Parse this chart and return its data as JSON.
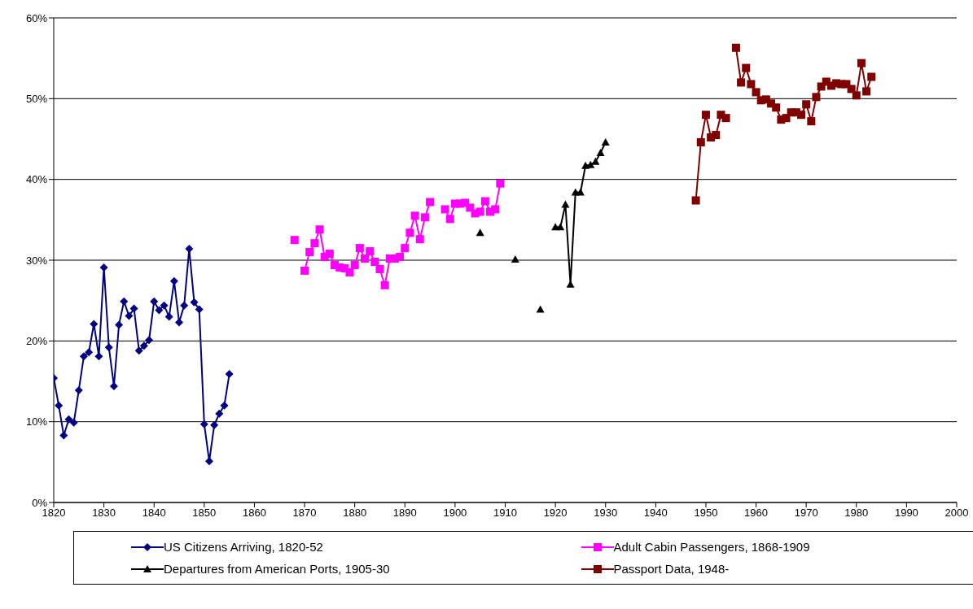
{
  "chart_data": {
    "type": "line",
    "xlim": [
      1820,
      2000
    ],
    "xticks": [
      1820,
      1830,
      1840,
      1850,
      1860,
      1870,
      1880,
      1890,
      1900,
      1910,
      1920,
      1930,
      1940,
      1950,
      1960,
      1970,
      1980,
      1990,
      2000
    ],
    "ylim": [
      0,
      60
    ],
    "yticks": [
      {
        "value": 0,
        "label": "0%"
      },
      {
        "value": 10,
        "label": "10%"
      },
      {
        "value": 20,
        "label": "20%"
      },
      {
        "value": 30,
        "label": "30%"
      },
      {
        "value": 40,
        "label": "40%"
      },
      {
        "value": 50,
        "label": "50%"
      },
      {
        "value": 60,
        "label": "60%"
      }
    ],
    "grid": "y",
    "legend": "bottom",
    "series": [
      {
        "name": "US Citizens Arriving, 1820-52",
        "color": "#000080",
        "marker": "diamond",
        "x": [
          1820,
          1821,
          1822,
          1823,
          1824,
          1825,
          1826,
          1827,
          1828,
          1829,
          1830,
          1831,
          1832,
          1833,
          1834,
          1835,
          1836,
          1837,
          1838,
          1839,
          1840,
          1841,
          1842,
          1843,
          1844,
          1845,
          1846,
          1847,
          1848,
          1849,
          1850,
          1851,
          1852,
          1853,
          1854,
          1855
        ],
        "values": [
          15.4,
          12.0,
          8.3,
          10.3,
          9.9,
          13.9,
          18.1,
          18.6,
          22.1,
          18.1,
          29.1,
          19.2,
          14.4,
          22.0,
          24.9,
          23.1,
          24.0,
          18.8,
          19.4,
          20.1,
          24.9,
          23.8,
          24.4,
          23.0,
          27.4,
          22.3,
          24.4,
          31.4,
          24.8,
          23.9,
          9.7,
          5.1,
          9.6,
          11.0,
          12.0,
          15.9
        ]
      },
      {
        "name": "Adult Cabin Passengers, 1868-1909",
        "color": "#ff00ff",
        "marker": "square",
        "x": [
          1868,
          1869,
          1870,
          1871,
          1872,
          1873,
          1874,
          1875,
          1876,
          1877,
          1878,
          1879,
          1880,
          1881,
          1882,
          1883,
          1884,
          1885,
          1886,
          1887,
          1888,
          1889,
          1890,
          1891,
          1892,
          1893,
          1894,
          1895,
          1896,
          1897,
          1898,
          1899,
          1900,
          1901,
          1902,
          1903,
          1904,
          1905,
          1906,
          1907,
          1908,
          1909
        ],
        "values": [
          32.5,
          null,
          28.7,
          31.0,
          32.1,
          33.8,
          30.4,
          30.8,
          29.4,
          29.1,
          29.0,
          28.5,
          29.4,
          31.5,
          30.2,
          31.1,
          29.8,
          28.9,
          26.9,
          30.2,
          30.2,
          30.4,
          31.5,
          33.4,
          35.5,
          32.6,
          35.3,
          37.2,
          null,
          null,
          36.3,
          35.1,
          37.0,
          37.0,
          37.1,
          36.5,
          35.8,
          36.0,
          37.3,
          36.0,
          36.3,
          39.5
        ]
      },
      {
        "name": "Departures from American Ports, 1905-30",
        "color": "#000000",
        "marker": "triangle",
        "x": [
          1905,
          1906,
          1912,
          1913,
          1917,
          1918,
          1920,
          1921,
          1922,
          1923,
          1924,
          1925,
          1926,
          1927,
          1928,
          1929,
          1930
        ],
        "values": [
          33.4,
          null,
          30.1,
          null,
          23.9,
          null,
          34.1,
          34.1,
          36.9,
          27.0,
          38.4,
          38.4,
          41.7,
          41.8,
          42.2,
          43.3,
          44.6
        ]
      },
      {
        "name": "Passport Data, 1948-",
        "color": "#800000",
        "marker": "square",
        "x": [
          1948,
          1949,
          1950,
          1951,
          1952,
          1953,
          1954,
          1955,
          1956,
          1957,
          1958,
          1959,
          1960,
          1961,
          1962,
          1963,
          1964,
          1965,
          1966,
          1967,
          1968,
          1969,
          1970,
          1971,
          1972,
          1973,
          1974,
          1975,
          1976,
          1977,
          1978,
          1979,
          1980,
          1981,
          1982,
          1983
        ],
        "values": [
          37.4,
          44.6,
          48.0,
          45.2,
          45.5,
          48.0,
          47.6,
          null,
          56.3,
          52.0,
          53.8,
          51.8,
          50.8,
          49.8,
          49.9,
          49.4,
          48.9,
          47.4,
          47.6,
          48.3,
          48.3,
          48.0,
          49.3,
          47.2,
          50.2,
          51.5,
          52.1,
          51.6,
          51.9,
          51.8,
          51.8,
          51.2,
          50.4,
          54.4,
          50.9,
          52.7
        ]
      }
    ]
  }
}
